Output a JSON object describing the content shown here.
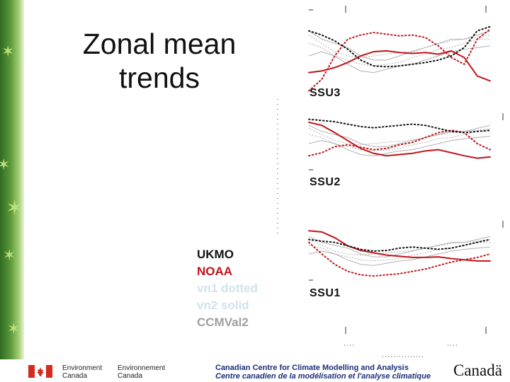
{
  "slide": {
    "title_line1": "Zonal mean",
    "title_line2": "trends"
  },
  "legend": [
    {
      "label": "UKMO",
      "color": "#111111"
    },
    {
      "label": "NOAA",
      "color": "#c0141a"
    },
    {
      "label": "vn1 dotted",
      "color": "#cfe3ec"
    },
    {
      "label": "vn2 solid",
      "color": "#cfe3ec"
    },
    {
      "label": "CCMVal2",
      "color": "#a0a0a0"
    }
  ],
  "panels": [
    {
      "label": "SSU3"
    },
    {
      "label": "SSU2"
    },
    {
      "label": "SSU1"
    }
  ],
  "chart_data": [
    {
      "type": "line",
      "title": "SSU3",
      "series": [
        {
          "name": "NOAA",
          "style": "solid",
          "color": "#c0141a",
          "values": [
            70,
            68,
            64,
            58,
            50,
            45,
            44,
            46,
            47,
            46,
            48,
            44,
            52,
            74,
            80
          ]
        },
        {
          "name": "NOAA",
          "style": "dotted",
          "color": "#c0141a",
          "values": [
            92,
            78,
            50,
            30,
            25,
            22,
            24,
            26,
            25,
            28,
            38,
            52,
            60,
            30,
            18
          ]
        },
        {
          "name": "UKMO",
          "style": "dotted",
          "color": "#111111",
          "values": [
            20,
            25,
            32,
            42,
            55,
            62,
            63,
            62,
            60,
            58,
            55,
            50,
            40,
            20,
            15
          ]
        }
      ]
    },
    {
      "type": "line",
      "title": "SSU2",
      "series": [
        {
          "name": "NOAA",
          "style": "solid",
          "color": "#c0141a",
          "values": [
            15,
            20,
            32,
            45,
            58,
            66,
            70,
            68,
            66,
            62,
            60,
            65,
            70,
            74,
            72
          ]
        },
        {
          "name": "NOAA",
          "style": "dotted",
          "color": "#c0141a",
          "values": [
            70,
            65,
            55,
            52,
            56,
            60,
            58,
            52,
            48,
            40,
            32,
            28,
            32,
            50,
            60
          ]
        },
        {
          "name": "UKMO",
          "style": "dotted",
          "color": "#111111",
          "values": [
            10,
            12,
            14,
            18,
            22,
            24,
            22,
            20,
            18,
            20,
            25,
            30,
            32,
            30,
            28
          ]
        }
      ]
    },
    {
      "type": "line",
      "title": "SSU1",
      "series": [
        {
          "name": "NOAA",
          "style": "solid",
          "color": "#c0141a",
          "values": [
            10,
            12,
            22,
            36,
            44,
            48,
            52,
            54,
            56,
            56,
            55,
            58,
            60,
            62,
            62
          ]
        },
        {
          "name": "NOAA",
          "style": "dotted",
          "color": "#c0141a",
          "values": [
            30,
            50,
            68,
            80,
            86,
            88,
            86,
            84,
            80,
            76,
            70,
            64,
            60,
            56,
            50
          ]
        },
        {
          "name": "UKMO",
          "style": "dotted",
          "color": "#111111",
          "values": [
            25,
            28,
            30,
            36,
            42,
            45,
            44,
            40,
            38,
            40,
            42,
            40,
            35,
            30,
            25
          ]
        }
      ]
    }
  ],
  "footer": {
    "org_en_line1": "Environment",
    "org_en_line2": "Canada",
    "org_fr_line1": "Environnement",
    "org_fr_line2": "Canada",
    "centre_en": "Canadian Centre for Climate Modelling and Analysis",
    "centre_fr": "Centre canadien de la modélisation et l'analyse climatique",
    "wordmark": "Canadä"
  }
}
